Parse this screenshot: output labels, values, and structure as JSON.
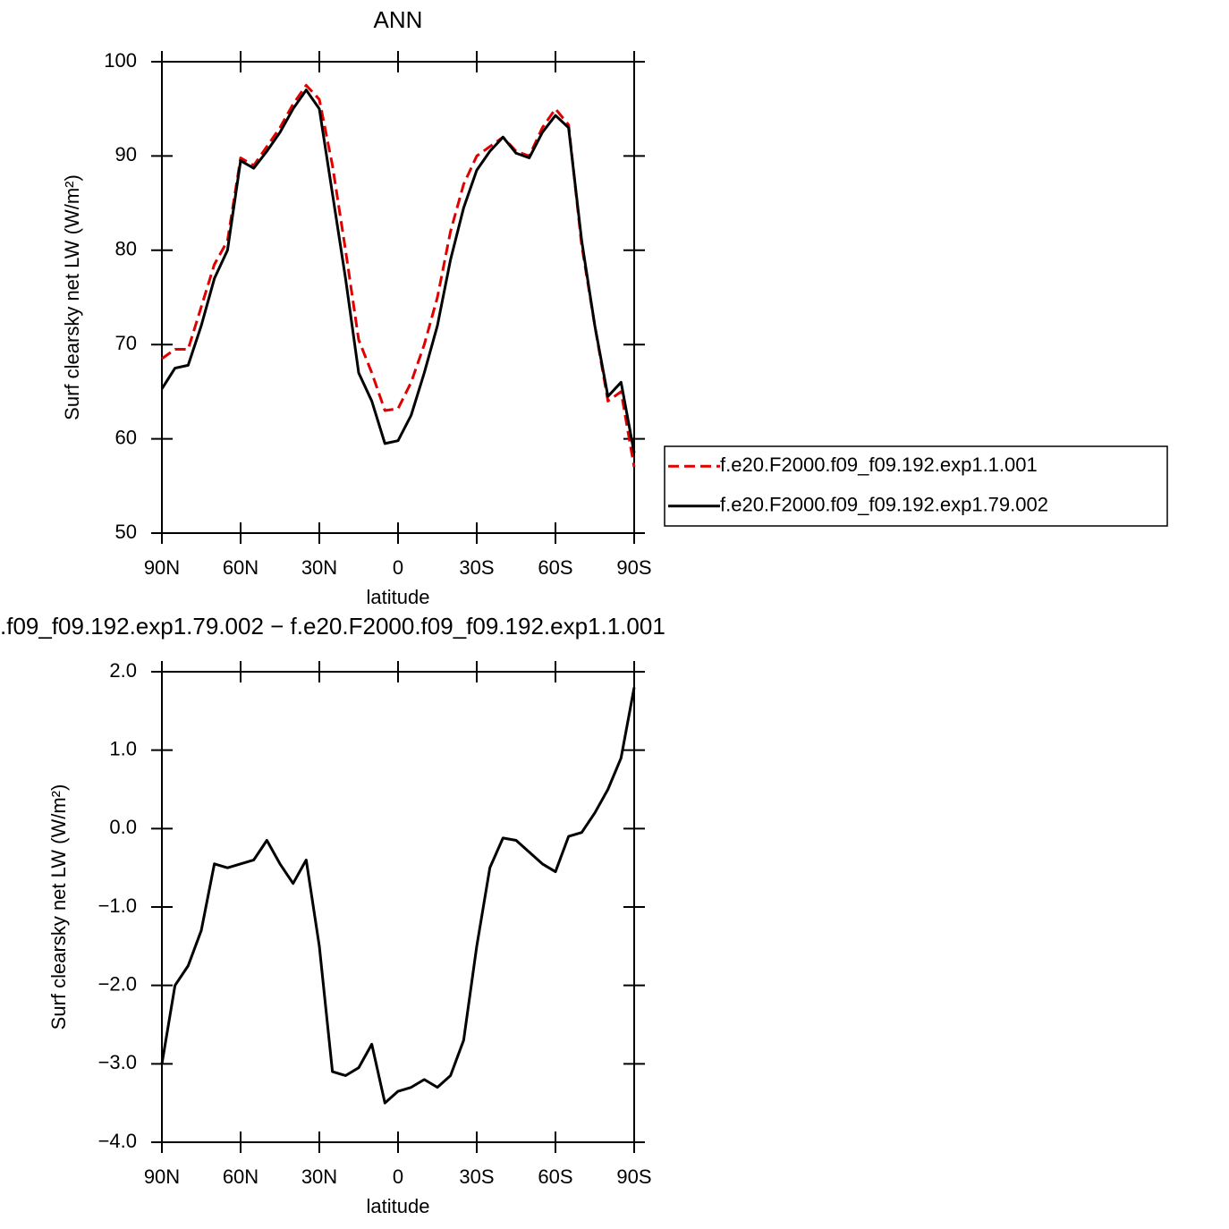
{
  "chart_data": [
    {
      "type": "line",
      "title": "ANN",
      "xlabel": "latitude",
      "ylabel": "Surf clearsky net LW (W/m²)",
      "x": [
        90,
        85,
        80,
        75,
        70,
        65,
        60,
        55,
        50,
        45,
        40,
        35,
        30,
        25,
        20,
        15,
        10,
        5,
        0,
        -5,
        -10,
        -15,
        -20,
        -25,
        -30,
        -35,
        -40,
        -45,
        -50,
        -55,
        -60,
        -65,
        -70,
        -75,
        -80,
        -85,
        -90
      ],
      "xlim": [
        90,
        -90
      ],
      "xticks": [
        {
          "value": 90,
          "label": "90N"
        },
        {
          "value": 60,
          "label": "60N"
        },
        {
          "value": 30,
          "label": "30N"
        },
        0,
        {
          "value": -30,
          "label": "30S"
        },
        {
          "value": -60,
          "label": "60S"
        },
        {
          "value": -90,
          "label": "90S"
        }
      ],
      "ylim": [
        50,
        100
      ],
      "yticks": [
        50,
        60,
        70,
        80,
        90,
        100
      ],
      "legend": "right",
      "series": [
        {
          "name": "f.e20.F2000.f09_f09.192.exp1.1.001",
          "color": "#e00000",
          "dash": true,
          "values": [
            68.5,
            69.5,
            69.5,
            74,
            78.5,
            81,
            89.8,
            89,
            91,
            93,
            95.5,
            97.5,
            96,
            89,
            80,
            70.5,
            67,
            63,
            63.2,
            66,
            70,
            75,
            82,
            87,
            90,
            91,
            92,
            90.5,
            90,
            93,
            95,
            93.3,
            80.5,
            72,
            64,
            65,
            57
          ]
        },
        {
          "name": "f.e20.F2000.f09_f09.192.exp1.79.002",
          "color": "#000000",
          "dash": false,
          "values": [
            65.3,
            67.5,
            67.8,
            72,
            77,
            80,
            89.5,
            88.7,
            90.5,
            92.5,
            95,
            97,
            95,
            86,
            77,
            67,
            64,
            59.5,
            59.8,
            62.5,
            67,
            72,
            79,
            84.5,
            88.5,
            90.5,
            92,
            90.3,
            89.8,
            92.5,
            94.3,
            93,
            81,
            72,
            64.5,
            66,
            58.5
          ]
        }
      ]
    },
    {
      "type": "line",
      "title": ".f09_f09.192.exp1.79.002 − f.e20.F2000.f09_f09.192.exp1.1.001",
      "xlabel": "latitude",
      "ylabel": "Surf clearsky net LW (W/m²)",
      "x": [
        90,
        85,
        80,
        75,
        70,
        65,
        60,
        55,
        50,
        45,
        40,
        35,
        30,
        25,
        20,
        15,
        10,
        5,
        0,
        -5,
        -10,
        -15,
        -20,
        -25,
        -30,
        -35,
        -40,
        -45,
        -50,
        -55,
        -60,
        -65,
        -70,
        -75,
        -80,
        -85,
        -90
      ],
      "xlim": [
        90,
        -90
      ],
      "xticks": [
        {
          "value": 90,
          "label": "90N"
        },
        {
          "value": 60,
          "label": "60N"
        },
        {
          "value": 30,
          "label": "30N"
        },
        0,
        {
          "value": -30,
          "label": "30S"
        },
        {
          "value": -60,
          "label": "60S"
        },
        {
          "value": -90,
          "label": "90S"
        }
      ],
      "ylim": [
        -4,
        2
      ],
      "yticks": [
        {
          "value": -4,
          "label": "−4.0"
        },
        {
          "value": -3,
          "label": "−3.0"
        },
        {
          "value": -2,
          "label": "−2.0"
        },
        {
          "value": -1,
          "label": "−1.0"
        },
        {
          "value": 0,
          "label": "0.0"
        },
        {
          "value": 1,
          "label": "1.0"
        },
        {
          "value": 2,
          "label": "2.0"
        }
      ],
      "series": [
        {
          "color": "#000000",
          "dash": false,
          "values": [
            -3.0,
            -2.0,
            -1.75,
            -1.3,
            -0.45,
            -0.5,
            -0.45,
            -0.4,
            -0.15,
            -0.45,
            -0.7,
            -0.4,
            -1.5,
            -3.1,
            -3.15,
            -3.05,
            -2.75,
            -3.5,
            -3.35,
            -3.3,
            -3.2,
            -3.3,
            -3.15,
            -2.7,
            -1.5,
            -0.5,
            -0.12,
            -0.15,
            -0.3,
            -0.45,
            -0.55,
            -0.1,
            -0.05,
            0.2,
            0.5,
            0.9,
            1.8
          ]
        }
      ]
    }
  ]
}
